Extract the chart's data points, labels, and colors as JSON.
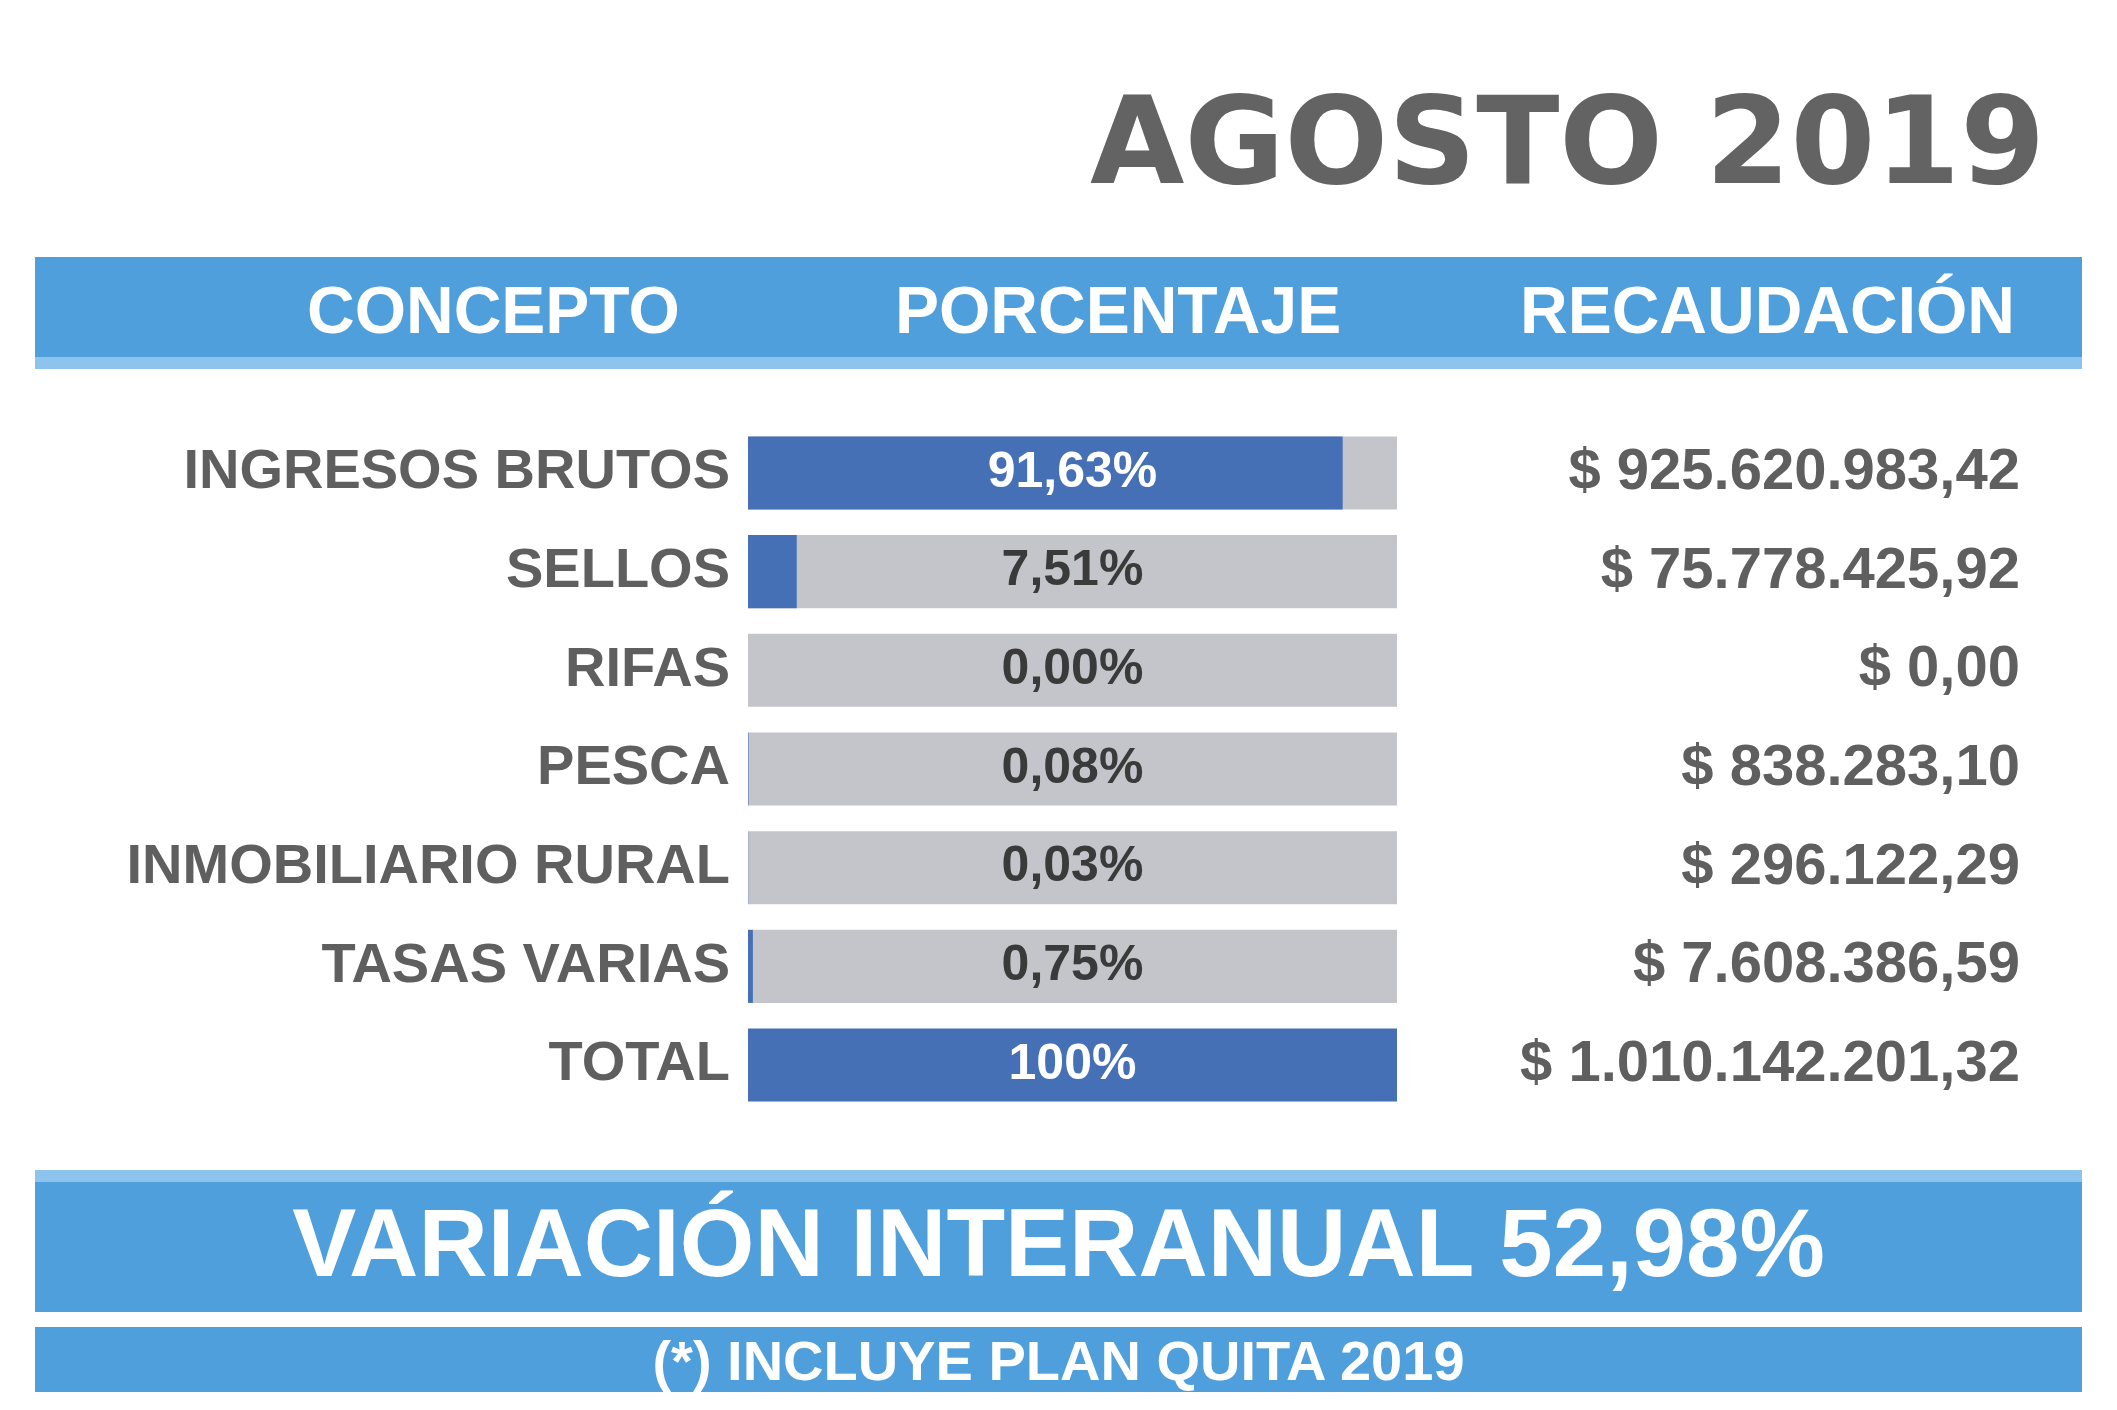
{
  "chart_data": {
    "type": "bar",
    "orientation": "horizontal",
    "title": "AGOSTO 2019",
    "ylabel": "CONCEPTO",
    "xlabel": "PORCENTAJE",
    "categories": [
      "INGRESOS BRUTOS",
      "SELLOS",
      "RIFAS",
      "PESCA",
      "INMOBILIARIO RURAL",
      "TASAS VARIAS",
      "TOTAL"
    ],
    "series": [
      {
        "color": "#c4c5ca",
        "values": [
          100,
          100,
          100,
          100,
          100,
          100,
          null
        ]
      },
      {
        "color": "#4570b5",
        "values": [
          91.63,
          7.51,
          0,
          0.08,
          0.03,
          0.75,
          100
        ],
        "value_labels": [
          "91,63%",
          "7,51%",
          "0,00%",
          "0,08%",
          "0,03%",
          "0,75%",
          "100%"
        ]
      }
    ],
    "xlim": [
      0,
      100
    ],
    "tick_labels": "y",
    "grid": false,
    "legend": false,
    "annotations": [
      "RECAUDACIÓN",
      "$ 925.620.983,42",
      "$ 75.778.425,92",
      "$ 0,00",
      "$ 838.283,10",
      "$ 296.122,29",
      "$ 7.608.386,59",
      "$ 1.010.142.201,32",
      "VARIACIÓN INTERANUAL 52,98%",
      "(*) INCLUYE PLAN QUITA 2019"
    ]
  }
}
